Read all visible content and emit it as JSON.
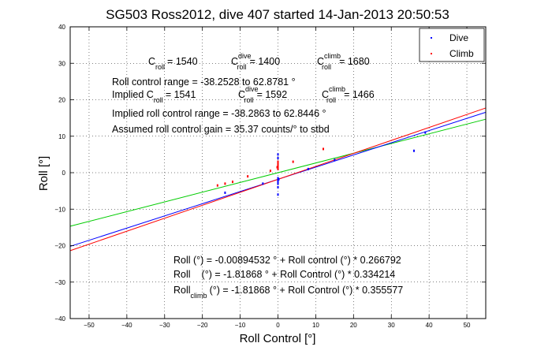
{
  "chart_data": {
    "type": "scatter",
    "title": "SG503 Ross2012, dive 407 started 14-Jan-2013 20:50:53",
    "xlabel": "Roll Control [°]",
    "ylabel": "Roll [°]",
    "xlim": [
      -55,
      55
    ],
    "ylim": [
      -40,
      40
    ],
    "xticks": [
      -50,
      -40,
      -30,
      -20,
      -10,
      0,
      10,
      20,
      30,
      40,
      50
    ],
    "yticks": [
      -40,
      -30,
      -20,
      -10,
      0,
      10,
      20,
      30,
      40
    ],
    "grid": true,
    "legend": {
      "placement": "top-right",
      "entries": [
        "Dive",
        "Climb"
      ]
    },
    "colors": {
      "dive": "#0000ff",
      "climb": "#ff0000",
      "fit_all": "#00cc00"
    },
    "series": [
      {
        "name": "Dive",
        "color": "#0000ff",
        "points": [
          [
            -14,
            -5.5
          ],
          [
            -4,
            -3
          ],
          [
            0,
            -1.5
          ],
          [
            0,
            -2
          ],
          [
            0,
            -2.5
          ],
          [
            0,
            -3
          ],
          [
            0,
            -4
          ],
          [
            0,
            -6
          ],
          [
            0,
            1
          ],
          [
            0,
            2
          ],
          [
            0,
            3
          ],
          [
            0,
            4
          ],
          [
            0,
            5
          ],
          [
            0.2,
            -1.8
          ],
          [
            8,
            1
          ],
          [
            15,
            3.5
          ],
          [
            36,
            6
          ],
          [
            39,
            11
          ]
        ]
      },
      {
        "name": "Climb",
        "color": "#ff0000",
        "points": [
          [
            -16,
            -3.5
          ],
          [
            -14,
            -3
          ],
          [
            -12,
            -2.5
          ],
          [
            -8,
            -1
          ],
          [
            -2,
            0.5
          ],
          [
            0,
            1
          ],
          [
            0,
            1.5
          ],
          [
            0,
            2
          ],
          [
            0,
            2.5
          ],
          [
            0,
            3
          ],
          [
            -0.2,
            1.5
          ],
          [
            4,
            3
          ],
          [
            12,
            6.5
          ]
        ]
      }
    ],
    "fit_lines": [
      {
        "color": "#00cc00",
        "intercept": -0.00894532,
        "slope": 0.266792
      },
      {
        "color": "#0000ff",
        "intercept": -1.81868,
        "slope": 0.334214
      },
      {
        "color": "#ff0000",
        "intercept": -1.81868,
        "slope": 0.355577
      }
    ],
    "annotations_top": {
      "c_roll": "= 1540",
      "c_roll_dive": "= 1400",
      "c_roll_climb": "= 1680",
      "range_text": "Roll control range = -38.2528 to 62.8781 °",
      "implied_prefix": "Implied C",
      "implied_c_roll": "= 1541",
      "implied_c_roll_dive": "= 1592",
      "implied_c_roll_climb": "= 1466",
      "implied_range_text": "Implied roll control range = -38.2863 to 62.8446 °",
      "gain_text": "Assumed roll control gain = 35.37 counts/° to stbd"
    },
    "annotations_bottom": {
      "eq1": "Roll (°) = -0.00894532 ° + Roll control (°) * 0.266792",
      "eq2_prefix": "Roll",
      "eq2": "(°) = -1.81868 ° + Roll Control (°) * 0.334214",
      "eq3_prefix": "Roll",
      "eq3_sub": "climb",
      "eq3": "(°) = -1.81868 ° + Roll Control (°) * 0.355577"
    },
    "labels": {
      "c": "C",
      "roll_sub": "roll",
      "dive_sup": "dive",
      "climb_sup": "climb"
    }
  }
}
